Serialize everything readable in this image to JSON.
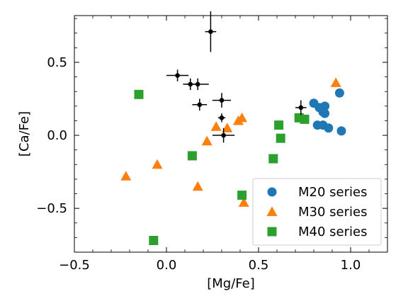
{
  "chart_data": {
    "type": "scatter",
    "title": "",
    "xlabel": "[Mg/Fe]",
    "ylabel": "[Ca/Fe]",
    "xlim": [
      -0.5,
      1.2
    ],
    "ylim": [
      -0.8,
      0.82
    ],
    "x_ticks": [
      {
        "value": -0.5,
        "label": "−0.5"
      },
      {
        "value": 0.0,
        "label": "0.0"
      },
      {
        "value": 0.5,
        "label": "0.5"
      },
      {
        "value": 1.0,
        "label": "1.0"
      }
    ],
    "y_ticks": [
      {
        "value": -0.5,
        "label": "−0.5"
      },
      {
        "value": 0.0,
        "label": "0.0"
      },
      {
        "value": 0.5,
        "label": "0.5"
      }
    ],
    "grid": false,
    "legend_position": "bottom-right",
    "series": [
      {
        "name": "M20 series",
        "marker": "circle",
        "color": "#1f77b4",
        "points": [
          {
            "x": 0.8,
            "y": 0.22
          },
          {
            "x": 0.83,
            "y": 0.19
          },
          {
            "x": 0.86,
            "y": 0.2
          },
          {
            "x": 0.85,
            "y": 0.16
          },
          {
            "x": 0.86,
            "y": 0.15
          },
          {
            "x": 0.94,
            "y": 0.29
          },
          {
            "x": 0.82,
            "y": 0.07
          },
          {
            "x": 0.85,
            "y": 0.07
          },
          {
            "x": 0.88,
            "y": 0.05
          },
          {
            "x": 0.95,
            "y": 0.03
          }
        ]
      },
      {
        "name": "M30 series",
        "marker": "triangle",
        "color": "#ff7f0e",
        "points": [
          {
            "x": 0.92,
            "y": 0.36
          },
          {
            "x": 0.41,
            "y": 0.12
          },
          {
            "x": 0.39,
            "y": 0.1
          },
          {
            "x": 0.27,
            "y": 0.06
          },
          {
            "x": 0.33,
            "y": 0.05
          },
          {
            "x": 0.22,
            "y": -0.04
          },
          {
            "x": -0.05,
            "y": -0.2
          },
          {
            "x": -0.22,
            "y": -0.28
          },
          {
            "x": 0.17,
            "y": -0.35
          },
          {
            "x": 0.42,
            "y": -0.46
          }
        ]
      },
      {
        "name": "M40 series",
        "marker": "square",
        "color": "#2ca02c",
        "points": [
          {
            "x": -0.15,
            "y": 0.28
          },
          {
            "x": 0.72,
            "y": 0.12
          },
          {
            "x": 0.75,
            "y": 0.11
          },
          {
            "x": 0.61,
            "y": 0.07
          },
          {
            "x": 0.62,
            "y": -0.02
          },
          {
            "x": 0.14,
            "y": -0.14
          },
          {
            "x": 0.58,
            "y": -0.16
          },
          {
            "x": 0.41,
            "y": -0.41
          },
          {
            "x": -0.07,
            "y": -0.72
          }
        ]
      },
      {
        "name": "",
        "marker": "errorbar-point",
        "color": "#000000",
        "points": [
          {
            "x": 0.24,
            "y": 0.71,
            "xerr": 0.03,
            "yerr": 0.14
          },
          {
            "x": 0.06,
            "y": 0.41,
            "xerr": 0.06,
            "yerr": 0.04
          },
          {
            "x": 0.13,
            "y": 0.35,
            "xerr": 0.04,
            "yerr": 0.04
          },
          {
            "x": 0.17,
            "y": 0.35,
            "xerr": 0.06,
            "yerr": 0.04
          },
          {
            "x": 0.3,
            "y": 0.24,
            "xerr": 0.05,
            "yerr": 0.05
          },
          {
            "x": 0.18,
            "y": 0.21,
            "xerr": 0.04,
            "yerr": 0.04
          },
          {
            "x": 0.3,
            "y": 0.12,
            "xerr": 0.02,
            "yerr": 0.03
          },
          {
            "x": 0.31,
            "y": 0.0,
            "xerr": 0.06,
            "yerr": 0.05
          },
          {
            "x": 0.73,
            "y": 0.19,
            "xerr": 0.03,
            "yerr": 0.05
          }
        ]
      }
    ]
  }
}
